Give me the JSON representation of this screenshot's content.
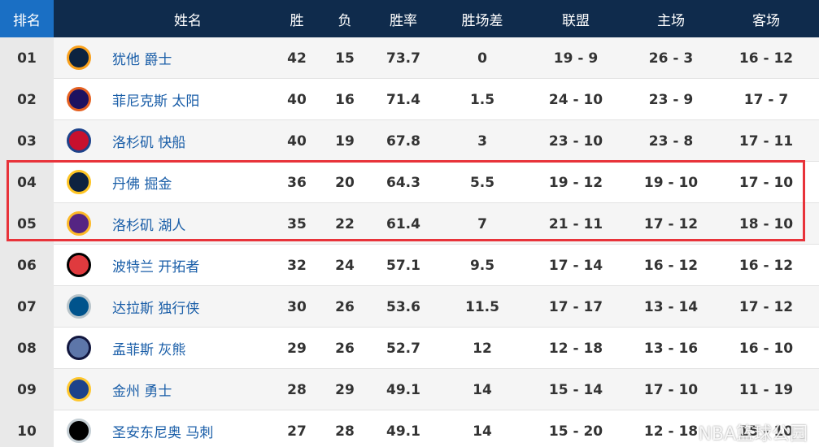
{
  "table": {
    "header": [
      "排名",
      "姓名",
      "胜",
      "负",
      "胜率",
      "胜场差",
      "联盟",
      "主场",
      "客场"
    ],
    "rows": [
      [
        "01",
        "犹他 爵士",
        "42",
        "15",
        "73.7",
        "0",
        "19 - 9",
        "26 - 3",
        "16 - 12"
      ],
      [
        "02",
        "菲尼克斯 太阳",
        "40",
        "16",
        "71.4",
        "1.5",
        "24 - 10",
        "23 - 9",
        "17 - 7"
      ],
      [
        "03",
        "洛杉矶 快船",
        "40",
        "19",
        "67.8",
        "3",
        "23 - 10",
        "23 - 8",
        "17 - 11"
      ],
      [
        "04",
        "丹佛 掘金",
        "36",
        "20",
        "64.3",
        "5.5",
        "19 - 12",
        "19 - 10",
        "17 - 10"
      ],
      [
        "05",
        "洛杉矶 湖人",
        "35",
        "22",
        "61.4",
        "7",
        "21 - 11",
        "17 - 12",
        "18 - 10"
      ],
      [
        "06",
        "波特兰 开拓者",
        "32",
        "24",
        "57.1",
        "9.5",
        "17 - 14",
        "16 - 12",
        "16 - 12"
      ],
      [
        "07",
        "达拉斯 独行侠",
        "30",
        "26",
        "53.6",
        "11.5",
        "17 - 17",
        "13 - 14",
        "17 - 12"
      ],
      [
        "08",
        "孟菲斯 灰熊",
        "29",
        "26",
        "52.7",
        "12",
        "12 - 18",
        "13 - 16",
        "16 - 10"
      ],
      [
        "09",
        "金州 勇士",
        "28",
        "29",
        "49.1",
        "14",
        "15 - 14",
        "17 - 10",
        "11 - 19"
      ],
      [
        "10",
        "圣安东尼奥 马刺",
        "27",
        "28",
        "49.1",
        "14",
        "15 - 20",
        "12 - 18",
        "15 - 10"
      ]
    ]
  },
  "watermark": "NBA篮球公园"
}
